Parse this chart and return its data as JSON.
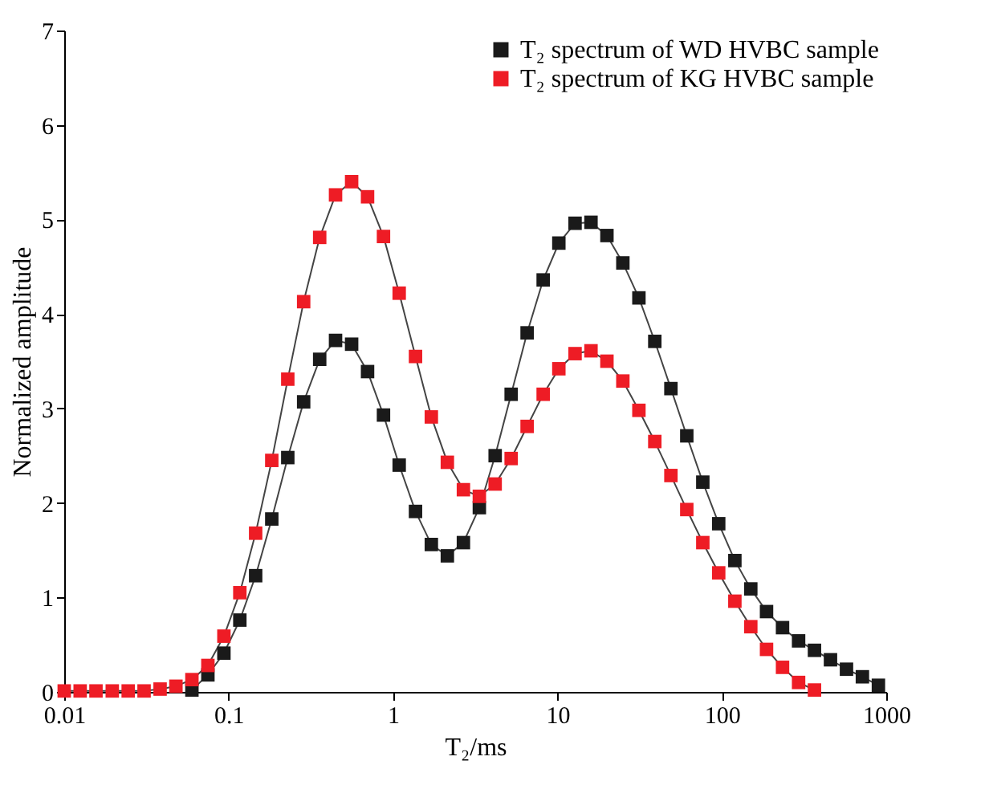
{
  "chart_data": {
    "type": "line",
    "xlabel": "T₂/ms",
    "ylabel": "Normalized amplitude",
    "x": [
      0.01,
      0.0125,
      0.0156,
      0.0196,
      0.0245,
      0.0306,
      0.0383,
      0.0478,
      0.0598,
      0.0748,
      0.0936,
      0.117,
      0.146,
      0.183,
      0.229,
      0.286,
      0.358,
      0.447,
      0.56,
      0.7,
      0.875,
      1.09,
      1.37,
      1.71,
      2.14,
      2.68,
      3.35,
      4.18,
      5.23,
      6.54,
      8.19,
      10.2,
      12.8,
      16.0,
      20.0,
      25.0,
      31.3,
      39.1,
      49.0,
      61.2,
      76.6,
      95.7,
      120,
      150,
      187,
      234,
      293,
      366,
      458,
      573,
      716,
      896
    ],
    "series": [
      {
        "name": "T₂ spectrum of WD HVBC sample",
        "color": "#1a1a1a",
        "values": [
          null,
          null,
          null,
          null,
          null,
          null,
          null,
          null,
          0.02,
          0.18,
          0.41,
          0.76,
          1.23,
          1.83,
          2.48,
          3.07,
          3.52,
          3.72,
          3.68,
          3.39,
          2.93,
          2.4,
          1.91,
          1.56,
          1.44,
          1.58,
          1.95,
          2.5,
          3.15,
          3.8,
          4.36,
          4.75,
          4.96,
          4.97,
          4.83,
          4.54,
          4.17,
          3.71,
          3.21,
          2.71,
          2.22,
          1.78,
          1.39,
          1.09,
          0.85,
          0.68,
          0.54,
          0.44,
          0.34,
          0.24,
          0.16,
          0.07
        ]
      },
      {
        "name": "T₂ spectrum of KG HVBC sample",
        "color": "#ee1c25",
        "values": [
          0.01,
          0.01,
          0.01,
          0.01,
          0.01,
          0.01,
          0.03,
          0.06,
          0.13,
          0.28,
          0.59,
          1.05,
          1.68,
          2.45,
          3.31,
          4.13,
          4.81,
          5.26,
          5.4,
          5.24,
          4.82,
          4.22,
          3.55,
          2.91,
          2.43,
          2.14,
          2.07,
          2.2,
          2.47,
          2.81,
          3.15,
          3.42,
          3.58,
          3.61,
          3.5,
          3.29,
          2.98,
          2.65,
          2.29,
          1.93,
          1.58,
          1.26,
          0.96,
          0.69,
          0.45,
          0.26,
          0.1,
          0.02,
          null,
          null,
          null,
          null
        ]
      }
    ],
    "log": "x",
    "xlim": [
      0.01,
      1000
    ],
    "xticks": [
      0.01,
      0.1,
      1,
      10,
      100,
      1000
    ],
    "ylim": [
      0,
      7
    ],
    "yticks": [
      0,
      1,
      2,
      3,
      4,
      5,
      6,
      7
    ],
    "marker": "square",
    "line_style": "solid",
    "grid": false,
    "legend": "top right"
  }
}
